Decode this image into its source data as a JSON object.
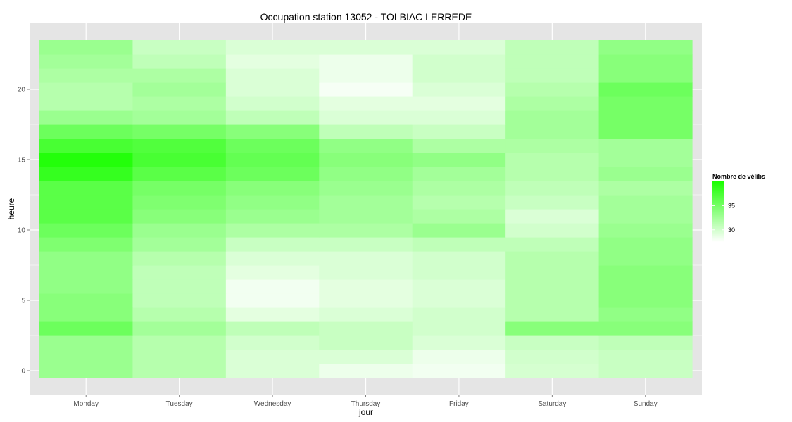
{
  "chart_data": {
    "type": "heatmap",
    "title": "Occupation station 13052 - TOLBIAC LERREDE",
    "xlabel": "jour",
    "ylabel": "heure",
    "categories": [
      "Monday",
      "Tuesday",
      "Wednesday",
      "Thursday",
      "Friday",
      "Saturday",
      "Sunday"
    ],
    "y": [
      0,
      1,
      2,
      3,
      4,
      5,
      6,
      7,
      8,
      9,
      10,
      11,
      12,
      13,
      14,
      15,
      16,
      17,
      18,
      19,
      20,
      21,
      22,
      23
    ],
    "y_ticks": [
      0,
      5,
      10,
      15,
      20
    ],
    "ylim": [
      -0.5,
      23.5
    ],
    "grid": true,
    "values": [
      [
        33.0,
        31.5,
        29.5,
        28.5,
        28.2,
        29.8,
        30.5
      ],
      [
        33.0,
        31.5,
        29.5,
        29.5,
        28.5,
        30.0,
        30.5
      ],
      [
        33.0,
        31.5,
        30.0,
        30.5,
        29.5,
        30.5,
        31.0
      ],
      [
        35.5,
        32.5,
        31.0,
        30.5,
        30.0,
        34.0,
        34.0
      ],
      [
        34.0,
        31.5,
        29.0,
        29.5,
        30.0,
        31.5,
        33.5
      ],
      [
        34.0,
        31.0,
        28.2,
        29.0,
        29.5,
        31.5,
        34.0
      ],
      [
        33.5,
        31.0,
        28.2,
        29.0,
        29.5,
        31.5,
        34.0
      ],
      [
        33.5,
        31.0,
        29.0,
        29.5,
        30.0,
        31.5,
        34.0
      ],
      [
        33.5,
        31.5,
        29.5,
        29.5,
        30.0,
        31.5,
        33.5
      ],
      [
        34.5,
        32.5,
        30.5,
        30.5,
        31.0,
        31.0,
        33.5
      ],
      [
        35.5,
        33.0,
        32.0,
        32.0,
        33.0,
        30.0,
        33.0
      ],
      [
        36.5,
        34.0,
        33.0,
        32.5,
        32.0,
        29.5,
        32.5
      ],
      [
        36.5,
        34.5,
        33.5,
        32.5,
        31.5,
        30.5,
        32.5
      ],
      [
        36.5,
        35.0,
        34.0,
        33.0,
        32.0,
        31.0,
        32.0
      ],
      [
        38.5,
        36.5,
        35.5,
        33.5,
        32.5,
        31.5,
        33.0
      ],
      [
        39.5,
        37.5,
        36.0,
        34.0,
        33.5,
        31.5,
        32.5
      ],
      [
        37.5,
        37.0,
        35.5,
        33.5,
        32.0,
        32.0,
        32.5
      ],
      [
        35.5,
        35.0,
        34.0,
        31.0,
        30.5,
        32.5,
        35.0
      ],
      [
        33.0,
        32.5,
        31.0,
        29.5,
        29.5,
        32.5,
        35.0
      ],
      [
        31.5,
        32.0,
        30.0,
        29.0,
        29.0,
        32.0,
        35.0
      ],
      [
        31.5,
        32.5,
        29.5,
        28.0,
        29.5,
        31.5,
        35.5
      ],
      [
        32.0,
        32.0,
        29.5,
        28.5,
        30.0,
        31.0,
        34.0
      ],
      [
        32.5,
        31.0,
        29.0,
        28.5,
        30.0,
        31.0,
        34.0
      ],
      [
        33.0,
        30.5,
        29.5,
        29.5,
        29.5,
        31.0,
        33.5
      ]
    ],
    "color_scale": {
      "title": "Nombre de vélibs",
      "low_color": "#ffffff",
      "high_color": "#1aff00",
      "domain": [
        27.5,
        40
      ],
      "breaks": [
        30,
        35
      ]
    },
    "legend_position": "right",
    "panel_color": "#e5e5e5",
    "grid_color": "#ffffff"
  }
}
